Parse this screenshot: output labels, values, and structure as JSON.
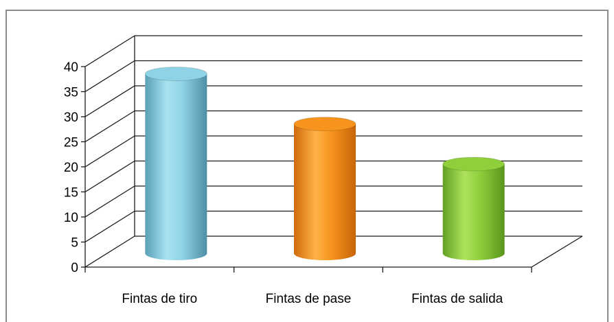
{
  "chart_data": {
    "type": "bar",
    "style": "3d-cylinder",
    "title": "",
    "xlabel": "",
    "ylabel": "",
    "categories": [
      "Fintas de tiro",
      "Fintas de pase",
      "Fintas de salida"
    ],
    "values": [
      38,
      28,
      20
    ],
    "colors": [
      "#8fd3e6",
      "#f7941d",
      "#8fcf3c"
    ],
    "ylim": [
      0,
      40
    ],
    "yticks": [
      "0",
      "5",
      "10",
      "15",
      "20",
      "25",
      "30",
      "35",
      "40"
    ],
    "grid": true,
    "legend": "none"
  }
}
